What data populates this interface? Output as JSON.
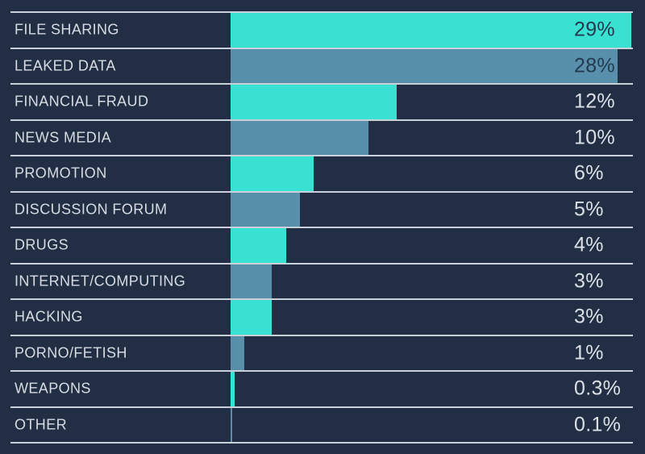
{
  "chart_data": {
    "type": "bar",
    "orientation": "horizontal",
    "title": "",
    "xlabel": "",
    "ylabel": "",
    "legend": "none",
    "grid": "horizontal-row-dividers",
    "xlim": [
      0,
      29
    ],
    "categories": [
      "FILE SHARING",
      "LEAKED DATA",
      "FINANCIAL FRAUD",
      "NEWS MEDIA",
      "PROMOTION",
      "DISCUSSION FORUM",
      "DRUGS",
      "INTERNET/COMPUTING",
      "HACKING",
      "PORNO/FETISH",
      "WEAPONS",
      "OTHER"
    ],
    "values": [
      29,
      28,
      12,
      10,
      6,
      5,
      4,
      3,
      3,
      1,
      0.3,
      0.1
    ],
    "value_labels": [
      "29%",
      "28%",
      "12%",
      "10%",
      "6%",
      "5%",
      "4%",
      "3%",
      "3%",
      "1%",
      "0.3%",
      "0.1%"
    ],
    "bar_palette_alternating": [
      "#38e1d1",
      "#5890ac"
    ]
  },
  "colors": {
    "background": "#212e44",
    "divider": "#c9d0d9",
    "category_text": "#d7dce2",
    "value_text_light": "#dbe0e6",
    "value_text_dark": "#24394f",
    "bar_teal": "#38e1d1",
    "bar_blue": "#5890ac"
  }
}
